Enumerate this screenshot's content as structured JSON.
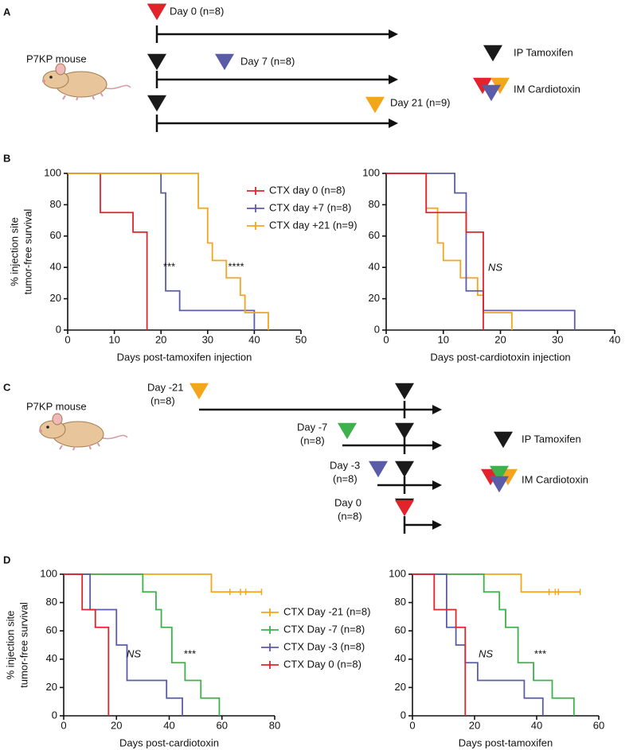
{
  "panel_labels": [
    "A",
    "B",
    "C",
    "D"
  ],
  "schematic_a": {
    "mouse": "P7KP mouse",
    "rows": [
      "Day 0 (n=8)",
      "Day 7 (n=8)",
      "Day 21 (n=9)"
    ],
    "legend": [
      "IP Tamoxifen",
      "IM Cardiotoxin"
    ]
  },
  "schematic_c": {
    "mouse": "P7KP mouse",
    "rows": [
      [
        "Day -21",
        "(n=8)"
      ],
      [
        "Day -7",
        "(n=8)"
      ],
      [
        "Day -3",
        "(n=8)"
      ],
      [
        "Day 0",
        "(n=8)"
      ]
    ],
    "legend": [
      "IP Tamoxifen",
      "IM Cardiotoxin"
    ]
  },
  "chart_data": [
    {
      "type": "line",
      "xlabel": "Days post-tamoxifen injection",
      "ylabel": [
        "% injection site",
        "tumor-free survival"
      ],
      "xlim": [
        0,
        50
      ],
      "xticks": [
        0,
        10,
        20,
        30,
        40,
        50
      ],
      "ylim": [
        0,
        100
      ],
      "yticks": [
        0,
        20,
        40,
        60,
        80,
        100
      ],
      "annotations": [
        "***",
        "****"
      ],
      "series": [
        {
          "name": "CTX day 0 (n=8)",
          "color": "#e3232c",
          "x": [
            0,
            7,
            7,
            14,
            14,
            17,
            17
          ],
          "values": [
            100,
            100,
            75,
            75,
            62.5,
            62.5,
            0
          ]
        },
        {
          "name": "CTX day +7 (n=8)",
          "color": "#5b5ca8",
          "x": [
            0,
            20,
            20,
            21,
            21,
            24,
            24,
            40,
            40
          ],
          "values": [
            100,
            100,
            87.5,
            87.5,
            25,
            25,
            12.5,
            12.5,
            0
          ]
        },
        {
          "name": "CTX day +21 (n=9)",
          "color": "#f4a51c",
          "x": [
            0,
            28,
            28,
            30,
            30,
            31,
            31,
            34,
            34,
            37,
            37,
            38,
            38,
            43,
            43
          ],
          "values": [
            100,
            100,
            77.8,
            77.8,
            55.6,
            55.6,
            44.4,
            44.4,
            33.3,
            33.3,
            22.2,
            22.2,
            11.1,
            11.1,
            0
          ]
        }
      ]
    },
    {
      "type": "line",
      "xlabel": "Days post-cardiotoxin injection",
      "xlim": [
        0,
        40
      ],
      "xticks": [
        0,
        10,
        20,
        30,
        40
      ],
      "ylim": [
        0,
        100
      ],
      "yticks": [
        0,
        20,
        40,
        60,
        80,
        100
      ],
      "annotations": [
        "NS"
      ],
      "series": [
        {
          "color": "#f4a51c",
          "x": [
            0,
            7,
            7,
            9,
            9,
            10,
            10,
            13,
            13,
            16,
            16,
            17,
            17,
            22,
            22
          ],
          "values": [
            100,
            100,
            77.8,
            77.8,
            55.6,
            55.6,
            44.4,
            44.4,
            33.3,
            33.3,
            22.2,
            22.2,
            11.1,
            11.1,
            0
          ]
        },
        {
          "color": "#5b5ca8",
          "x": [
            0,
            12,
            12,
            14,
            14,
            17,
            17,
            33,
            33
          ],
          "values": [
            100,
            100,
            87.5,
            87.5,
            25,
            25,
            12.5,
            12.5,
            0
          ]
        },
        {
          "color": "#e3232c",
          "x": [
            0,
            7,
            7,
            14,
            14,
            17,
            17
          ],
          "values": [
            100,
            100,
            75,
            75,
            62.5,
            62.5,
            0
          ]
        }
      ]
    },
    {
      "type": "line",
      "xlabel": "Days post-cardiotoxin",
      "ylabel": [
        "% injection site",
        "tumor-free survival"
      ],
      "xlim": [
        0,
        80
      ],
      "xticks": [
        0,
        20,
        40,
        60,
        80
      ],
      "ylim": [
        0,
        100
      ],
      "yticks": [
        0,
        20,
        40,
        60,
        80,
        100
      ],
      "annotations": [
        "NS",
        "***"
      ],
      "series": [
        {
          "name": "CTX Day -21 (n=8)",
          "color": "#f4a51c",
          "x": [
            0,
            56,
            56,
            75
          ],
          "values": [
            100,
            100,
            87.5,
            87.5
          ],
          "censored": {
            "x": [
              63,
              67,
              69,
              75
            ],
            "y": [
              87.5,
              87.5,
              87.5,
              87.5
            ]
          }
        },
        {
          "name": "CTX Day -7 (n=8)",
          "color": "#3db14b",
          "x": [
            0,
            30,
            30,
            35,
            35,
            37,
            37,
            41,
            41,
            46,
            46,
            52,
            52,
            59,
            59
          ],
          "values": [
            100,
            100,
            87.5,
            87.5,
            75,
            75,
            62.5,
            62.5,
            37.5,
            37.5,
            25,
            25,
            12.5,
            12.5,
            0
          ]
        },
        {
          "name": "CTX Day -3 (n=8)",
          "color": "#5b5ca8",
          "x": [
            0,
            10,
            10,
            20,
            20,
            24,
            24,
            39,
            39,
            45,
            45
          ],
          "values": [
            100,
            100,
            75,
            75,
            50,
            50,
            25,
            25,
            12.5,
            12.5,
            0
          ]
        },
        {
          "name": "CTX Day 0 (n=8)",
          "color": "#e3232c",
          "x": [
            0,
            7,
            7,
            12,
            12,
            17,
            17
          ],
          "values": [
            100,
            100,
            75,
            75,
            62.5,
            62.5,
            0
          ]
        }
      ]
    },
    {
      "type": "line",
      "xlabel": "Days post-tamoxifen",
      "xlim": [
        0,
        60
      ],
      "xticks": [
        0,
        20,
        40,
        60
      ],
      "ylim": [
        0,
        100
      ],
      "yticks": [
        0,
        20,
        40,
        60,
        80,
        100
      ],
      "annotations": [
        "NS",
        "***"
      ],
      "series": [
        {
          "color": "#f4a51c",
          "x": [
            0,
            35,
            35,
            54
          ],
          "values": [
            100,
            100,
            87.5,
            87.5
          ],
          "censored": {
            "x": [
              44,
              46,
              47,
              54
            ],
            "y": [
              87.5,
              87.5,
              87.5,
              87.5
            ]
          }
        },
        {
          "color": "#3db14b",
          "x": [
            0,
            23,
            23,
            28,
            28,
            30,
            30,
            34,
            34,
            39,
            39,
            45,
            45,
            52,
            52
          ],
          "values": [
            100,
            100,
            87.5,
            87.5,
            75,
            75,
            62.5,
            62.5,
            37.5,
            37.5,
            25,
            25,
            12.5,
            12.5,
            0
          ]
        },
        {
          "color": "#5b5ca8",
          "x": [
            0,
            11,
            11,
            14,
            14,
            17,
            17,
            21,
            21,
            36,
            36,
            42,
            42
          ],
          "values": [
            100,
            100,
            62.5,
            62.5,
            50,
            50,
            37.5,
            37.5,
            25,
            25,
            12.5,
            12.5,
            0
          ]
        },
        {
          "color": "#e3232c",
          "x": [
            0,
            7,
            7,
            14,
            14,
            17,
            17
          ],
          "values": [
            100,
            100,
            75,
            75,
            62.5,
            62.5,
            0
          ]
        }
      ]
    }
  ]
}
